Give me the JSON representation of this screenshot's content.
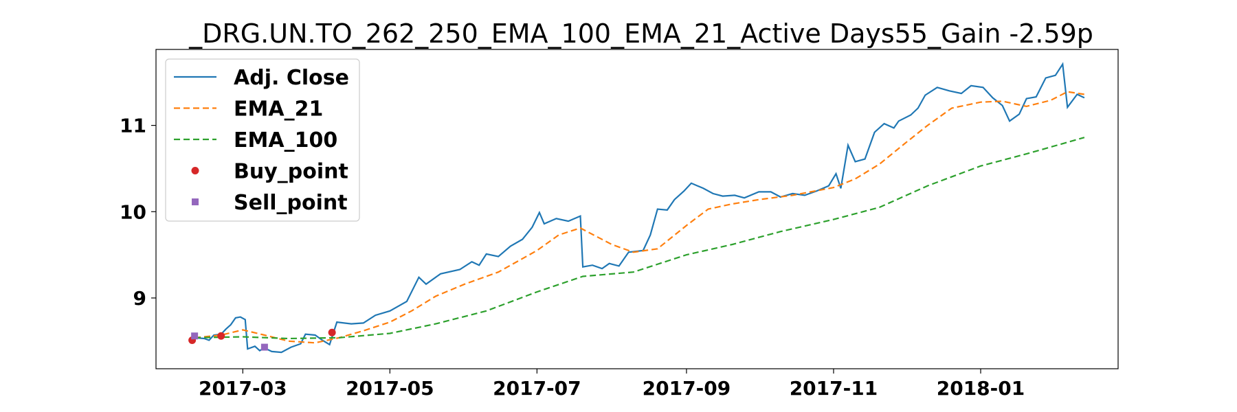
{
  "chart_data": {
    "type": "line",
    "title": "_DRG.UN.TO_262_250_EMA_100_EMA_21_Active Days55_Gain  -2.59p",
    "xlabel": "",
    "ylabel": "",
    "x_ticks": [
      "2017-03",
      "2017-05",
      "2017-07",
      "2017-09",
      "2017-11",
      "2018-01"
    ],
    "y_ticks": [
      9,
      10,
      11
    ],
    "xlim": [
      "2017-01-24",
      "2018-02-27"
    ],
    "ylim": [
      8.18,
      11.88
    ],
    "grid": false,
    "legend_position": "upper left",
    "series": [
      {
        "name": "Adj. Close",
        "style": "solid",
        "color": "#1f77b4",
        "points": [
          [
            "2017-02-09",
            8.54
          ],
          [
            "2017-02-13",
            8.53
          ],
          [
            "2017-02-15",
            8.51
          ],
          [
            "2017-02-17",
            8.57
          ],
          [
            "2017-02-20",
            8.58
          ],
          [
            "2017-02-22",
            8.64
          ],
          [
            "2017-02-24",
            8.69
          ],
          [
            "2017-02-26",
            8.77
          ],
          [
            "2017-02-28",
            8.78
          ],
          [
            "2017-03-02",
            8.75
          ],
          [
            "2017-03-03",
            8.41
          ],
          [
            "2017-03-06",
            8.44
          ],
          [
            "2017-03-08",
            8.39
          ],
          [
            "2017-03-10",
            8.42
          ],
          [
            "2017-03-13",
            8.38
          ],
          [
            "2017-03-17",
            8.37
          ],
          [
            "2017-03-21",
            8.43
          ],
          [
            "2017-03-25",
            8.47
          ],
          [
            "2017-03-27",
            8.58
          ],
          [
            "2017-03-31",
            8.57
          ],
          [
            "2017-04-03",
            8.51
          ],
          [
            "2017-04-06",
            8.46
          ],
          [
            "2017-04-09",
            8.72
          ],
          [
            "2017-04-15",
            8.7
          ],
          [
            "2017-04-20",
            8.71
          ],
          [
            "2017-04-25",
            8.8
          ],
          [
            "2017-05-01",
            8.85
          ],
          [
            "2017-05-08",
            8.96
          ],
          [
            "2017-05-13",
            9.24
          ],
          [
            "2017-05-16",
            9.16
          ],
          [
            "2017-05-22",
            9.28
          ],
          [
            "2017-05-30",
            9.33
          ],
          [
            "2017-06-04",
            9.42
          ],
          [
            "2017-06-07",
            9.38
          ],
          [
            "2017-06-10",
            9.51
          ],
          [
            "2017-06-15",
            9.48
          ],
          [
            "2017-06-20",
            9.6
          ],
          [
            "2017-06-25",
            9.68
          ],
          [
            "2017-06-29",
            9.82
          ],
          [
            "2017-07-02",
            9.99
          ],
          [
            "2017-07-04",
            9.86
          ],
          [
            "2017-07-09",
            9.92
          ],
          [
            "2017-07-14",
            9.89
          ],
          [
            "2017-07-19",
            9.95
          ],
          [
            "2017-07-20",
            9.36
          ],
          [
            "2017-07-24",
            9.38
          ],
          [
            "2017-07-28",
            9.34
          ],
          [
            "2017-07-31",
            9.4
          ],
          [
            "2017-08-04",
            9.37
          ],
          [
            "2017-08-08",
            9.53
          ],
          [
            "2017-08-14",
            9.55
          ],
          [
            "2017-08-17",
            9.73
          ],
          [
            "2017-08-20",
            10.03
          ],
          [
            "2017-08-24",
            10.02
          ],
          [
            "2017-08-27",
            10.14
          ],
          [
            "2017-08-31",
            10.24
          ],
          [
            "2017-09-03",
            10.33
          ],
          [
            "2017-09-08",
            10.27
          ],
          [
            "2017-09-12",
            10.21
          ],
          [
            "2017-09-16",
            10.18
          ],
          [
            "2017-09-21",
            10.19
          ],
          [
            "2017-09-25",
            10.16
          ],
          [
            "2017-10-01",
            10.23
          ],
          [
            "2017-10-06",
            10.23
          ],
          [
            "2017-10-10",
            10.17
          ],
          [
            "2017-10-15",
            10.21
          ],
          [
            "2017-10-20",
            10.19
          ],
          [
            "2017-10-25",
            10.24
          ],
          [
            "2017-10-30",
            10.3
          ],
          [
            "2017-11-02",
            10.44
          ],
          [
            "2017-11-04",
            10.27
          ],
          [
            "2017-11-07",
            10.77
          ],
          [
            "2017-11-10",
            10.58
          ],
          [
            "2017-11-14",
            10.61
          ],
          [
            "2017-11-18",
            10.92
          ],
          [
            "2017-11-22",
            11.02
          ],
          [
            "2017-11-26",
            10.97
          ],
          [
            "2017-11-28",
            11.05
          ],
          [
            "2017-12-03",
            11.12
          ],
          [
            "2017-12-06",
            11.2
          ],
          [
            "2017-12-09",
            11.35
          ],
          [
            "2017-12-14",
            11.44
          ],
          [
            "2017-12-19",
            11.4
          ],
          [
            "2017-12-24",
            11.37
          ],
          [
            "2017-12-28",
            11.46
          ],
          [
            "2018-01-02",
            11.44
          ],
          [
            "2018-01-06",
            11.32
          ],
          [
            "2018-01-10",
            11.23
          ],
          [
            "2018-01-13",
            11.05
          ],
          [
            "2018-01-17",
            11.13
          ],
          [
            "2018-01-20",
            11.31
          ],
          [
            "2018-01-24",
            11.33
          ],
          [
            "2018-01-28",
            11.55
          ],
          [
            "2018-02-01",
            11.58
          ],
          [
            "2018-02-04",
            11.71
          ],
          [
            "2018-02-06",
            11.21
          ],
          [
            "2018-02-10",
            11.36
          ],
          [
            "2018-02-13",
            11.32
          ]
        ]
      },
      {
        "name": "EMA_21",
        "style": "dashed",
        "color": "#ff7f0e",
        "points": [
          [
            "2017-02-09",
            8.54
          ],
          [
            "2017-02-20",
            8.57
          ],
          [
            "2017-03-01",
            8.63
          ],
          [
            "2017-03-10",
            8.57
          ],
          [
            "2017-03-20",
            8.5
          ],
          [
            "2017-03-31",
            8.48
          ],
          [
            "2017-04-10",
            8.54
          ],
          [
            "2017-04-20",
            8.62
          ],
          [
            "2017-05-01",
            8.72
          ],
          [
            "2017-05-10",
            8.85
          ],
          [
            "2017-05-20",
            9.02
          ],
          [
            "2017-06-01",
            9.16
          ],
          [
            "2017-06-15",
            9.3
          ],
          [
            "2017-07-01",
            9.55
          ],
          [
            "2017-07-10",
            9.73
          ],
          [
            "2017-07-19",
            9.81
          ],
          [
            "2017-08-01",
            9.62
          ],
          [
            "2017-08-10",
            9.53
          ],
          [
            "2017-08-20",
            9.57
          ],
          [
            "2017-09-01",
            9.84
          ],
          [
            "2017-09-10",
            10.03
          ],
          [
            "2017-09-20",
            10.09
          ],
          [
            "2017-10-01",
            10.14
          ],
          [
            "2017-10-15",
            10.19
          ],
          [
            "2017-11-01",
            10.28
          ],
          [
            "2017-11-10",
            10.38
          ],
          [
            "2017-11-20",
            10.55
          ],
          [
            "2017-12-01",
            10.8
          ],
          [
            "2017-12-10",
            11.0
          ],
          [
            "2017-12-20",
            11.2
          ],
          [
            "2018-01-01",
            11.27
          ],
          [
            "2018-01-10",
            11.28
          ],
          [
            "2018-01-20",
            11.22
          ],
          [
            "2018-01-30",
            11.29
          ],
          [
            "2018-02-06",
            11.39
          ],
          [
            "2018-02-13",
            11.36
          ]
        ]
      },
      {
        "name": "EMA_100",
        "style": "dashed",
        "color": "#2ca02c",
        "points": [
          [
            "2017-02-09",
            8.54
          ],
          [
            "2017-03-01",
            8.55
          ],
          [
            "2017-03-20",
            8.53
          ],
          [
            "2017-04-10",
            8.54
          ],
          [
            "2017-05-01",
            8.59
          ],
          [
            "2017-05-20",
            8.7
          ],
          [
            "2017-06-10",
            8.85
          ],
          [
            "2017-07-01",
            9.07
          ],
          [
            "2017-07-20",
            9.25
          ],
          [
            "2017-08-10",
            9.3
          ],
          [
            "2017-09-01",
            9.5
          ],
          [
            "2017-09-20",
            9.62
          ],
          [
            "2017-10-10",
            9.77
          ],
          [
            "2017-11-01",
            9.91
          ],
          [
            "2017-11-20",
            10.05
          ],
          [
            "2017-12-10",
            10.3
          ],
          [
            "2018-01-01",
            10.53
          ],
          [
            "2018-01-20",
            10.67
          ],
          [
            "2018-02-13",
            10.86
          ]
        ]
      }
    ],
    "markers": [
      {
        "name": "Buy_point",
        "shape": "circle",
        "color": "#d62728",
        "points": [
          [
            "2017-02-08",
            8.51
          ],
          [
            "2017-02-20",
            8.56
          ],
          [
            "2017-04-07",
            8.6
          ]
        ]
      },
      {
        "name": "Sell_point",
        "shape": "square",
        "color": "#9467bd",
        "points": [
          [
            "2017-02-09",
            8.56
          ],
          [
            "2017-03-10",
            8.43
          ]
        ]
      }
    ]
  }
}
